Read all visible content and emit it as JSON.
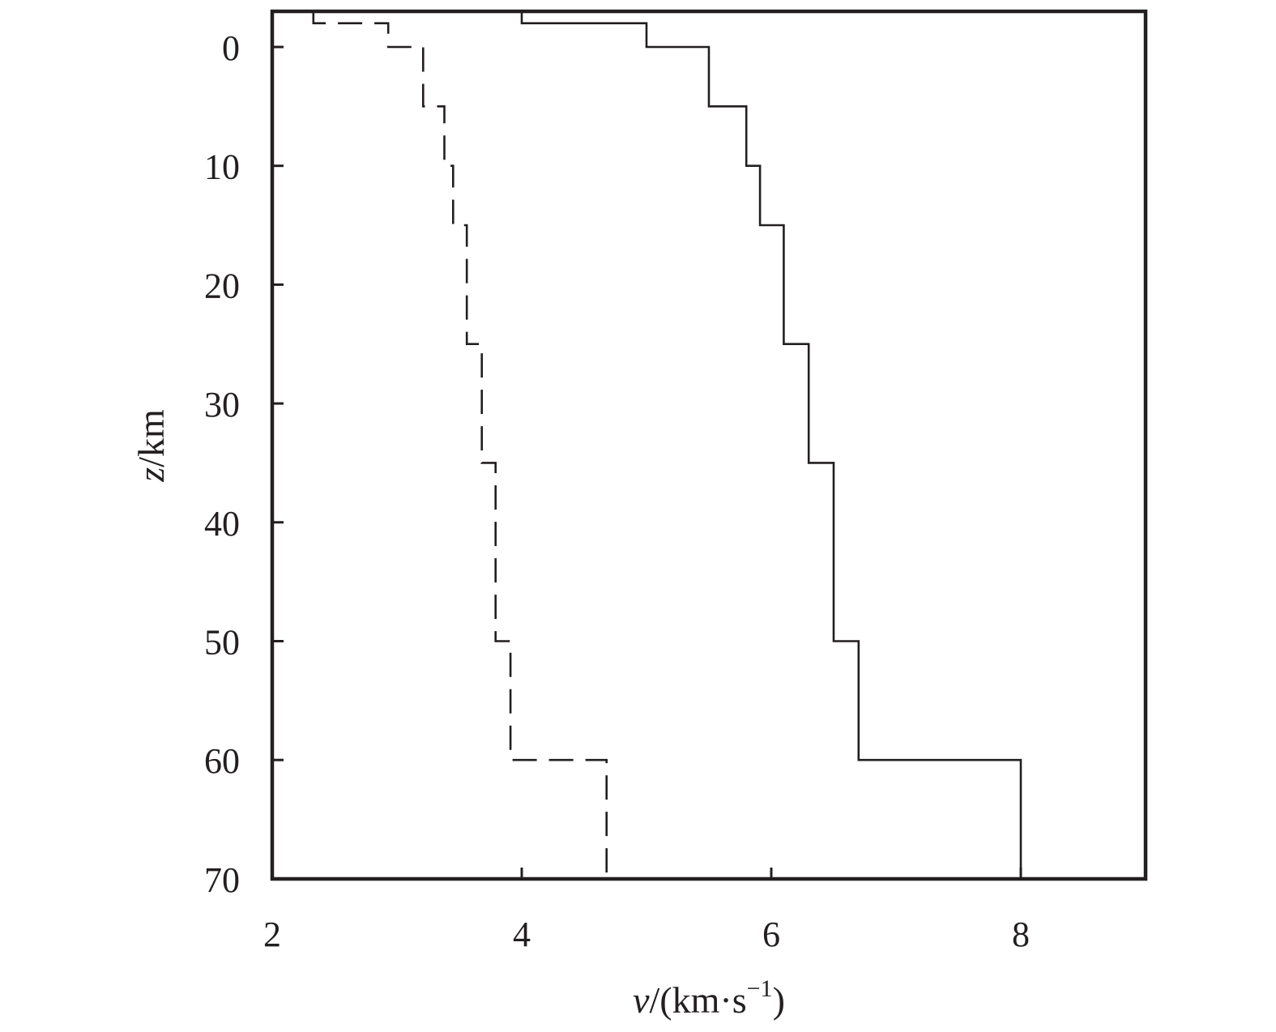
{
  "chart_data": {
    "type": "line",
    "xlabel": {
      "italic": "v",
      "unit_prefix": "/(km·s",
      "superscript": "−1",
      "unit_suffix": ")"
    },
    "ylabel": {
      "italic": "z",
      "unit": "/km"
    },
    "xlim": [
      2,
      9
    ],
    "ylim": [
      -3,
      70
    ],
    "y_inverted": true,
    "x_ticks": [
      2,
      4,
      6,
      8
    ],
    "y_ticks": [
      0,
      10,
      20,
      30,
      40,
      50,
      60,
      70
    ],
    "grid": false,
    "legend": "none",
    "series": [
      {
        "style": "solid",
        "color": "#231f20",
        "steps": [
          {
            "v": 4.0,
            "z_top": -3,
            "z_bottom": -2
          },
          {
            "v": 5.0,
            "z_top": -2,
            "z_bottom": 0
          },
          {
            "v": 5.5,
            "z_top": 0,
            "z_bottom": 5
          },
          {
            "v": 5.8,
            "z_top": 5,
            "z_bottom": 10
          },
          {
            "v": 5.91,
            "z_top": 10,
            "z_bottom": 15
          },
          {
            "v": 6.1,
            "z_top": 15,
            "z_bottom": 25
          },
          {
            "v": 6.3,
            "z_top": 25,
            "z_bottom": 35
          },
          {
            "v": 6.5,
            "z_top": 35,
            "z_bottom": 50
          },
          {
            "v": 6.7,
            "z_top": 50,
            "z_bottom": 60
          },
          {
            "v": 8.0,
            "z_top": 60,
            "z_bottom": 70
          }
        ]
      },
      {
        "style": "dashed",
        "color": "#231f20",
        "steps": [
          {
            "v": 2.33,
            "z_top": -3,
            "z_bottom": -2
          },
          {
            "v": 2.93,
            "z_top": -2,
            "z_bottom": 0
          },
          {
            "v": 3.21,
            "z_top": 0,
            "z_bottom": 5
          },
          {
            "v": 3.38,
            "z_top": 5,
            "z_bottom": 10
          },
          {
            "v": 3.45,
            "z_top": 10,
            "z_bottom": 15
          },
          {
            "v": 3.56,
            "z_top": 15,
            "z_bottom": 25
          },
          {
            "v": 3.68,
            "z_top": 25,
            "z_bottom": 35
          },
          {
            "v": 3.79,
            "z_top": 35,
            "z_bottom": 50
          },
          {
            "v": 3.91,
            "z_top": 50,
            "z_bottom": 60
          },
          {
            "v": 4.68,
            "z_top": 60,
            "z_bottom": 70
          }
        ]
      }
    ]
  }
}
